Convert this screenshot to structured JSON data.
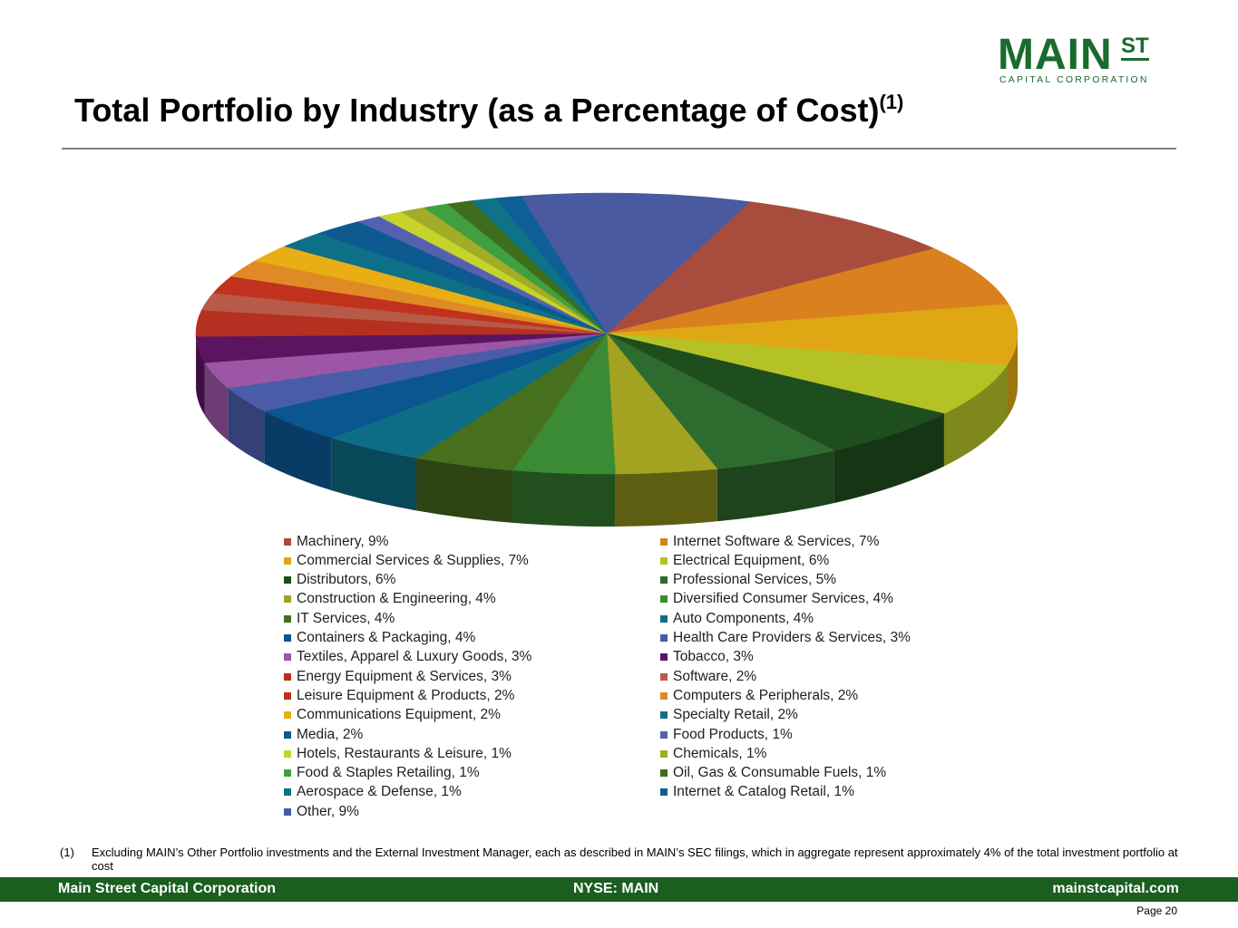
{
  "header": {
    "title": "Total Portfolio by Industry (as a Percentage of Cost)",
    "title_superscript": "(1)",
    "logo_main": "MAIN",
    "logo_st": "ST",
    "logo_sub": "CAPITAL CORPORATION",
    "logo_color": "#1a6b2e"
  },
  "chart_data": {
    "type": "pie",
    "title": "Total Portfolio by Industry (as a Percentage of Cost)",
    "unit": "%",
    "slices": [
      {
        "label": "Machinery",
        "value": 9,
        "color": "#a84d3e"
      },
      {
        "label": "Internet Software & Services",
        "value": 7,
        "color": "#d9801f"
      },
      {
        "label": "Commercial Services & Supplies",
        "value": 7,
        "color": "#e0a714"
      },
      {
        "label": "Electrical Equipment",
        "value": 6,
        "color": "#b5c226"
      },
      {
        "label": "Distributors",
        "value": 6,
        "color": "#1e4d1e"
      },
      {
        "label": "Professional Services",
        "value": 5,
        "color": "#2e6b2e"
      },
      {
        "label": "Construction & Engineering",
        "value": 4,
        "color": "#a3a321"
      },
      {
        "label": "Diversified Consumer Services",
        "value": 4,
        "color": "#3b8a34"
      },
      {
        "label": "IT Services",
        "value": 4,
        "color": "#47701e"
      },
      {
        "label": "Auto Components",
        "value": 4,
        "color": "#0e6d86"
      },
      {
        "label": "Containers & Packaging",
        "value": 4,
        "color": "#0b5591"
      },
      {
        "label": "Health Care Providers & Services",
        "value": 3,
        "color": "#4a5ca8"
      },
      {
        "label": "Textiles, Apparel & Luxury Goods",
        "value": 3,
        "color": "#9b56a6"
      },
      {
        "label": "Tobacco",
        "value": 3,
        "color": "#5a1460"
      },
      {
        "label": "Energy Equipment & Services",
        "value": 3,
        "color": "#b53020"
      },
      {
        "label": "Software",
        "value": 2,
        "color": "#b85a48"
      },
      {
        "label": "Leisure Equipment & Products",
        "value": 2,
        "color": "#c0321e"
      },
      {
        "label": "Computers & Peripherals",
        "value": 2,
        "color": "#e08a26"
      },
      {
        "label": "Communications Equipment",
        "value": 2,
        "color": "#e8ae14"
      },
      {
        "label": "Specialty Retail",
        "value": 2,
        "color": "#0e7086"
      },
      {
        "label": "Media",
        "value": 2,
        "color": "#0d5a90"
      },
      {
        "label": "Food Products",
        "value": 1,
        "color": "#5660b0"
      },
      {
        "label": "Hotels, Restaurants & Leisure",
        "value": 1,
        "color": "#c4d42a"
      },
      {
        "label": "Chemicals",
        "value": 1,
        "color": "#a2ac26"
      },
      {
        "label": "Food & Staples Retailing",
        "value": 1,
        "color": "#40a040"
      },
      {
        "label": "Oil, Gas & Consumable Fuels",
        "value": 1,
        "color": "#3e6e1c"
      },
      {
        "label": "Aerospace & Defense",
        "value": 1,
        "color": "#0e7288"
      },
      {
        "label": "Internet & Catalog Retail",
        "value": 1,
        "color": "#0e5e98"
      },
      {
        "label": "Other",
        "value": 9,
        "color": "#4a5aa0"
      }
    ],
    "legend": [
      "Machinery, 9%",
      "Internet Software & Services, 7%",
      "Commercial Services & Supplies, 7%",
      "Electrical Equipment, 6%",
      "Distributors, 6%",
      "Professional Services, 5%",
      "Construction & Engineering, 4%",
      "Diversified Consumer Services, 4%",
      "IT Services, 4%",
      "Auto Components, 4%",
      "Containers & Packaging, 4%",
      "Health Care Providers & Services, 3%",
      "Textiles, Apparel & Luxury Goods, 3%",
      "Tobacco, 3%",
      "Energy Equipment & Services, 3%",
      "Software, 2%",
      "Leisure Equipment & Products, 2%",
      "Computers & Peripherals, 2%",
      "Communications Equipment, 2%",
      "Specialty Retail, 2%",
      "Media, 2%",
      "Food Products, 1%",
      "Hotels, Restaurants & Leisure, 1%",
      "Chemicals, 1%",
      "Food & Staples Retailing, 1%",
      "Oil, Gas & Consumable Fuels, 1%",
      "Aerospace & Defense, 1%",
      "Internet & Catalog Retail, 1%",
      "Other, 9%"
    ],
    "legend_placement": "bottom"
  },
  "footnote": {
    "number": "(1)",
    "text": "Excluding MAIN’s Other Portfolio investments and the External Investment Manager, each as described in MAIN’s SEC filings, which in aggregate represent approximately 4% of the total investment portfolio at cost"
  },
  "footer": {
    "company": "Main Street Capital Corporation",
    "ticker": "NYSE: MAIN",
    "website": "mainstcapital.com",
    "bar_color": "#1a5e20"
  },
  "page": {
    "label": "Page",
    "number": "20"
  }
}
